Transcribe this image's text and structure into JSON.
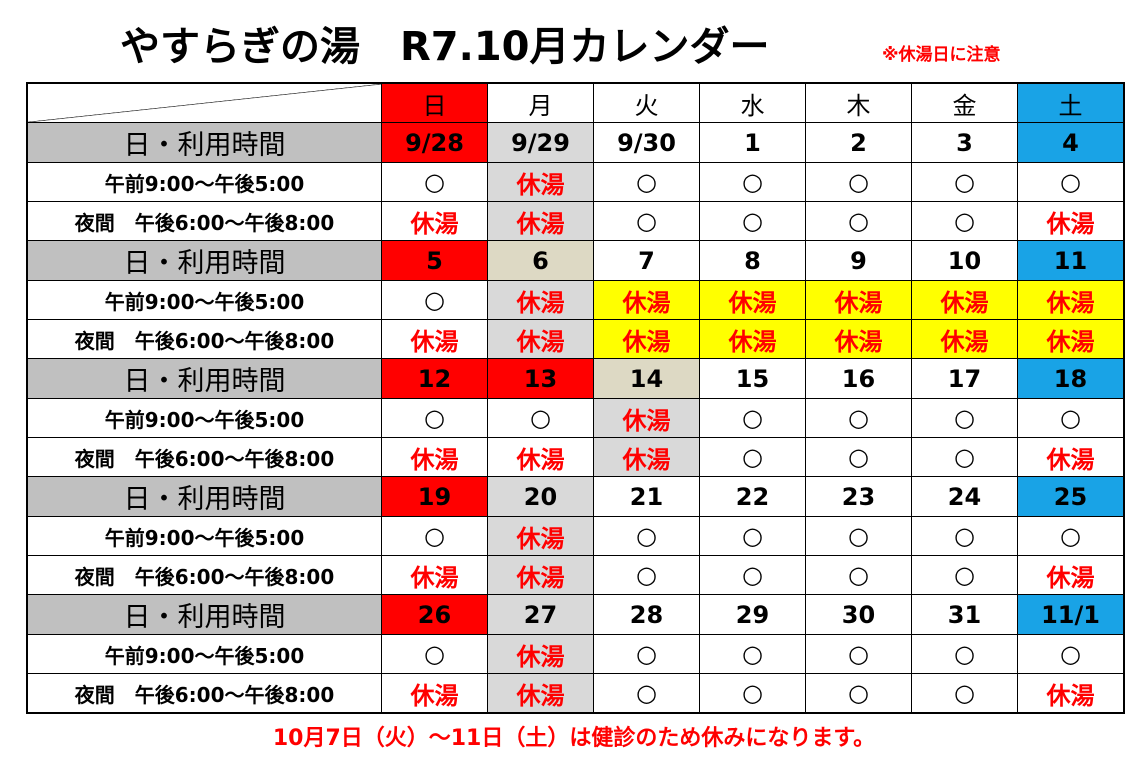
{
  "header": {
    "title": "やすらぎの湯　R7.10月カレンダー",
    "note": "※休湯日に注意"
  },
  "table": {
    "days": [
      "日",
      "月",
      "火",
      "水",
      "木",
      "金",
      "土"
    ],
    "day_fills": [
      "#ff0000",
      "#ffffff",
      "#ffffff",
      "#ffffff",
      "#ffffff",
      "#ffffff",
      "#19a3e6"
    ],
    "weeks": [
      {
        "label": "日・利用時間",
        "dates": [
          "9/28",
          "9/29",
          "9/30",
          "1",
          "2",
          "3",
          "4"
        ],
        "date_fills": [
          "#ff0000",
          "#d9d9d9",
          "#ffffff",
          "#ffffff",
          "#ffffff",
          "#ffffff",
          "#19a3e6"
        ],
        "rows": [
          {
            "label": "午前9:00～午後5:00",
            "cells": [
              "○",
              "休湯",
              "○",
              "○",
              "○",
              "○",
              "○"
            ],
            "fills": [
              "#ffffff",
              "#d9d9d9",
              "#ffffff",
              "#ffffff",
              "#ffffff",
              "#ffffff",
              "#ffffff"
            ],
            "inks": [
              "#000000",
              "#ff0000",
              "#000000",
              "#000000",
              "#000000",
              "#000000",
              "#000000"
            ]
          },
          {
            "label": "夜間　午後6:00～午後8:00",
            "cells": [
              "休湯",
              "休湯",
              "○",
              "○",
              "○",
              "○",
              "休湯"
            ],
            "fills": [
              "#ffffff",
              "#d9d9d9",
              "#ffffff",
              "#ffffff",
              "#ffffff",
              "#ffffff",
              "#ffffff"
            ],
            "inks": [
              "#ff0000",
              "#ff0000",
              "#000000",
              "#000000",
              "#000000",
              "#000000",
              "#ff0000"
            ]
          }
        ]
      },
      {
        "label": "日・利用時間",
        "dates": [
          "5",
          "6",
          "7",
          "8",
          "9",
          "10",
          "11"
        ],
        "date_fills": [
          "#ff0000",
          "#ddd9c4",
          "#ffffff",
          "#ffffff",
          "#ffffff",
          "#ffffff",
          "#19a3e6"
        ],
        "rows": [
          {
            "label": "午前9:00～午後5:00",
            "cells": [
              "○",
              "休湯",
              "休湯",
              "休湯",
              "休湯",
              "休湯",
              "休湯"
            ],
            "fills": [
              "#ffffff",
              "#d9d9d9",
              "#ffff00",
              "#ffff00",
              "#ffff00",
              "#ffff00",
              "#ffff00"
            ],
            "inks": [
              "#000000",
              "#ff0000",
              "#ff0000",
              "#ff0000",
              "#ff0000",
              "#ff0000",
              "#ff0000"
            ]
          },
          {
            "label": "夜間　午後6:00～午後8:00",
            "cells": [
              "休湯",
              "休湯",
              "休湯",
              "休湯",
              "休湯",
              "休湯",
              "休湯"
            ],
            "fills": [
              "#ffffff",
              "#d9d9d9",
              "#ffff00",
              "#ffff00",
              "#ffff00",
              "#ffff00",
              "#ffff00"
            ],
            "inks": [
              "#ff0000",
              "#ff0000",
              "#ff0000",
              "#ff0000",
              "#ff0000",
              "#ff0000",
              "#ff0000"
            ]
          }
        ]
      },
      {
        "label": "日・利用時間",
        "dates": [
          "12",
          "13",
          "14",
          "15",
          "16",
          "17",
          "18"
        ],
        "date_fills": [
          "#ff0000",
          "#ff0000",
          "#ddd9c4",
          "#ffffff",
          "#ffffff",
          "#ffffff",
          "#19a3e6"
        ],
        "rows": [
          {
            "label": "午前9:00～午後5:00",
            "cells": [
              "○",
              "○",
              "休湯",
              "○",
              "○",
              "○",
              "○"
            ],
            "fills": [
              "#ffffff",
              "#ffffff",
              "#d9d9d9",
              "#ffffff",
              "#ffffff",
              "#ffffff",
              "#ffffff"
            ],
            "inks": [
              "#000000",
              "#000000",
              "#ff0000",
              "#000000",
              "#000000",
              "#000000",
              "#000000"
            ]
          },
          {
            "label": "夜間　午後6:00～午後8:00",
            "cells": [
              "休湯",
              "休湯",
              "休湯",
              "○",
              "○",
              "○",
              "休湯"
            ],
            "fills": [
              "#ffffff",
              "#ffffff",
              "#d9d9d9",
              "#ffffff",
              "#ffffff",
              "#ffffff",
              "#ffffff"
            ],
            "inks": [
              "#ff0000",
              "#ff0000",
              "#ff0000",
              "#000000",
              "#000000",
              "#000000",
              "#ff0000"
            ]
          }
        ]
      },
      {
        "label": "日・利用時間",
        "dates": [
          "19",
          "20",
          "21",
          "22",
          "23",
          "24",
          "25"
        ],
        "date_fills": [
          "#ff0000",
          "#d9d9d9",
          "#ffffff",
          "#ffffff",
          "#ffffff",
          "#ffffff",
          "#19a3e6"
        ],
        "rows": [
          {
            "label": "午前9:00～午後5:00",
            "cells": [
              "○",
              "休湯",
              "○",
              "○",
              "○",
              "○",
              "○"
            ],
            "fills": [
              "#ffffff",
              "#d9d9d9",
              "#ffffff",
              "#ffffff",
              "#ffffff",
              "#ffffff",
              "#ffffff"
            ],
            "inks": [
              "#000000",
              "#ff0000",
              "#000000",
              "#000000",
              "#000000",
              "#000000",
              "#000000"
            ]
          },
          {
            "label": "夜間　午後6:00～午後8:00",
            "cells": [
              "休湯",
              "休湯",
              "○",
              "○",
              "○",
              "○",
              "休湯"
            ],
            "fills": [
              "#ffffff",
              "#d9d9d9",
              "#ffffff",
              "#ffffff",
              "#ffffff",
              "#ffffff",
              "#ffffff"
            ],
            "inks": [
              "#ff0000",
              "#ff0000",
              "#000000",
              "#000000",
              "#000000",
              "#000000",
              "#ff0000"
            ]
          }
        ]
      },
      {
        "label": "日・利用時間",
        "dates": [
          "26",
          "27",
          "28",
          "29",
          "30",
          "31",
          "11/1"
        ],
        "date_fills": [
          "#ff0000",
          "#d9d9d9",
          "#ffffff",
          "#ffffff",
          "#ffffff",
          "#ffffff",
          "#19a3e6"
        ],
        "rows": [
          {
            "label": "午前9:00～午後5:00",
            "cells": [
              "○",
              "休湯",
              "○",
              "○",
              "○",
              "○",
              "○"
            ],
            "fills": [
              "#ffffff",
              "#d9d9d9",
              "#ffffff",
              "#ffffff",
              "#ffffff",
              "#ffffff",
              "#ffffff"
            ],
            "inks": [
              "#000000",
              "#ff0000",
              "#000000",
              "#000000",
              "#000000",
              "#000000",
              "#000000"
            ]
          },
          {
            "label": "夜間　午後6:00～午後8:00",
            "cells": [
              "休湯",
              "休湯",
              "○",
              "○",
              "○",
              "○",
              "休湯"
            ],
            "fills": [
              "#ffffff",
              "#d9d9d9",
              "#ffffff",
              "#ffffff",
              "#ffffff",
              "#ffffff",
              "#ffffff"
            ],
            "inks": [
              "#ff0000",
              "#ff0000",
              "#000000",
              "#000000",
              "#000000",
              "#000000",
              "#ff0000"
            ]
          }
        ]
      }
    ],
    "label_fill": "#c0c0c0"
  },
  "footer": {
    "text": "10月7日（火）～11日（土）は健診のため休みになります。"
  }
}
